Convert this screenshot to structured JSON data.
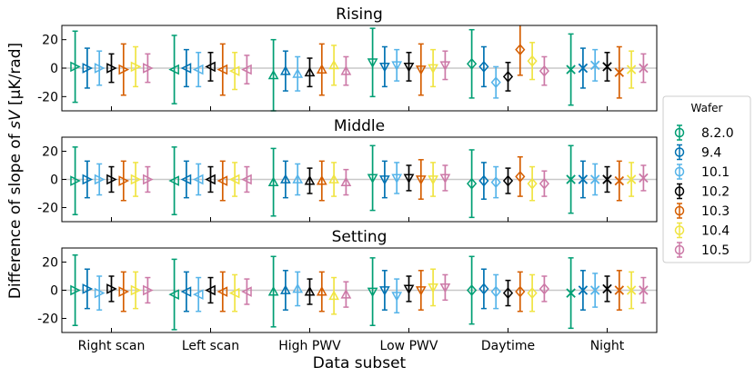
{
  "chart_data": {
    "type": "scatter",
    "xlabel": "Data subset",
    "ylabel_prefix": "Difference of slope of ",
    "ylabel_var": "sV",
    "ylabel_suffix": " [μK/rad]",
    "categories": [
      "Right scan",
      "Left scan",
      "High PWV",
      "Low PWV",
      "Daytime",
      "Night"
    ],
    "marker_shapes": [
      "triangle-right",
      "triangle-left",
      "triangle-up",
      "triangle-down",
      "diamond",
      "x"
    ],
    "ylim": [
      -30,
      30
    ],
    "yticks": [
      -20,
      0,
      20
    ],
    "zero_line": true,
    "legend": {
      "title": "Wafer",
      "placement": "right",
      "entries": [
        {
          "name": "8.2.0",
          "color": "#009e73"
        },
        {
          "name": "9.4",
          "color": "#0072b2"
        },
        {
          "name": "10.1",
          "color": "#56b4e9"
        },
        {
          "name": "10.2",
          "color": "#000000"
        },
        {
          "name": "10.3",
          "color": "#d55e00"
        },
        {
          "name": "10.4",
          "color": "#f0e442"
        },
        {
          "name": "10.5",
          "color": "#cc79a7"
        }
      ]
    },
    "panels": [
      {
        "title": "Rising",
        "values": [
          [
            1,
            0,
            0,
            0,
            -1,
            1,
            0
          ],
          [
            -1,
            0,
            -1,
            1,
            -1,
            -2,
            -1
          ],
          [
            -5,
            -2,
            -4,
            -3,
            -1,
            2,
            -2
          ],
          [
            4,
            1,
            2,
            1,
            -1,
            0,
            2
          ],
          [
            3,
            1,
            -10,
            -6,
            13,
            5,
            -2
          ],
          [
            -1,
            0,
            2,
            1,
            -3,
            -1,
            0
          ]
        ],
        "errors": [
          [
            25,
            14,
            12,
            10,
            18,
            14,
            10
          ],
          [
            24,
            13,
            12,
            10,
            18,
            13,
            10
          ],
          [
            25,
            14,
            12,
            10,
            18,
            14,
            10
          ],
          [
            24,
            14,
            11,
            10,
            18,
            13,
            10
          ],
          [
            24,
            14,
            11,
            10,
            18,
            13,
            10
          ],
          [
            25,
            14,
            11,
            10,
            18,
            13,
            10
          ]
        ]
      },
      {
        "title": "Middle",
        "values": [
          [
            -1,
            0,
            0,
            0,
            -1,
            0,
            0
          ],
          [
            -1,
            0,
            0,
            0,
            -1,
            0,
            0
          ],
          [
            -2,
            0,
            0,
            -1,
            -1,
            0,
            -2
          ],
          [
            1,
            0,
            1,
            1,
            0,
            0,
            1
          ],
          [
            -3,
            -1,
            -2,
            -1,
            2,
            -3,
            -3
          ],
          [
            0,
            0,
            0,
            0,
            -1,
            0,
            1
          ]
        ],
        "errors": [
          [
            24,
            13,
            11,
            9,
            14,
            12,
            9
          ],
          [
            24,
            13,
            11,
            9,
            14,
            12,
            9
          ],
          [
            24,
            13,
            11,
            9,
            14,
            12,
            9
          ],
          [
            23,
            13,
            11,
            9,
            14,
            12,
            9
          ],
          [
            24,
            13,
            11,
            9,
            14,
            12,
            9
          ],
          [
            24,
            13,
            11,
            9,
            14,
            12,
            9
          ]
        ]
      },
      {
        "title": "Setting",
        "values": [
          [
            0,
            1,
            -2,
            1,
            -1,
            0,
            0
          ],
          [
            -3,
            -1,
            -3,
            0,
            -1,
            -2,
            -1
          ],
          [
            -1,
            0,
            1,
            -1,
            -1,
            -4,
            -3
          ],
          [
            -1,
            0,
            -4,
            1,
            0,
            2,
            2
          ],
          [
            0,
            1,
            -1,
            -2,
            -1,
            -2,
            1
          ],
          [
            -2,
            0,
            0,
            1,
            0,
            0,
            0
          ]
        ],
        "errors": [
          [
            25,
            14,
            12,
            9,
            14,
            13,
            9
          ],
          [
            25,
            14,
            12,
            9,
            14,
            13,
            9
          ],
          [
            25,
            14,
            12,
            9,
            14,
            13,
            9
          ],
          [
            24,
            14,
            12,
            9,
            14,
            13,
            9
          ],
          [
            24,
            14,
            12,
            9,
            14,
            13,
            9
          ],
          [
            25,
            14,
            12,
            9,
            14,
            13,
            9
          ]
        ]
      }
    ]
  }
}
